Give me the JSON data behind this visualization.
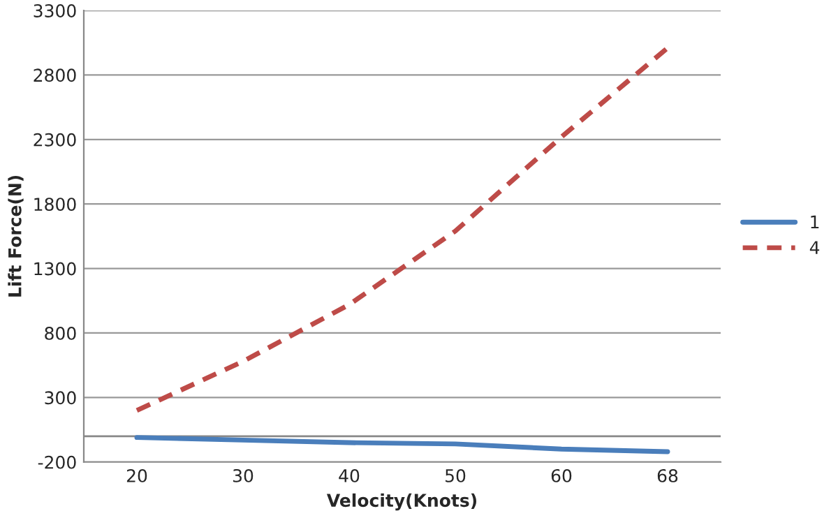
{
  "chart_data": {
    "type": "line",
    "xlabel": "Velocity(Knots)",
    "ylabel": "Lift Force(N)",
    "categories": [
      "20",
      "30",
      "40",
      "50",
      "60",
      "68"
    ],
    "series": [
      {
        "name": "1",
        "color": "#4a7ebb",
        "line_style": "solid",
        "values": [
          -10,
          -30,
          -50,
          -60,
          -100,
          -120
        ]
      },
      {
        "name": "4",
        "color": "#be4b48",
        "line_style": "dashed",
        "values": [
          200,
          580,
          1020,
          1590,
          2320,
          3010
        ]
      }
    ],
    "ylim": [
      -200,
      3300
    ],
    "yticks": [
      -200,
      300,
      800,
      1300,
      1800,
      2300,
      2800,
      3300
    ],
    "ref_lines": [
      {
        "axis": "y",
        "value": 0,
        "color": "#888888"
      }
    ],
    "grid": "y",
    "legend": "right",
    "marker": "none"
  }
}
